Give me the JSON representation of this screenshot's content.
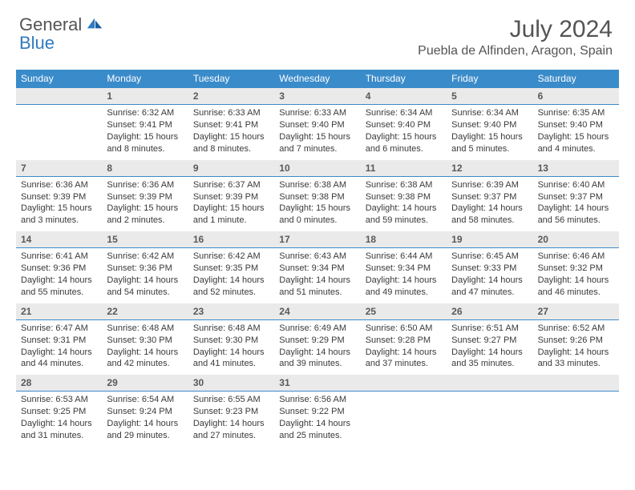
{
  "brand": {
    "part1": "General",
    "part2": "Blue"
  },
  "title": "July 2024",
  "location": "Puebla de Alfinden, Aragon, Spain",
  "colors": {
    "header_bg": "#3a8bca",
    "header_text": "#ffffff",
    "daynum_bg": "#eaeaea",
    "daynum_border": "#3a8bca",
    "body_text": "#3a3a3a",
    "title_text": "#545454"
  },
  "day_headers": [
    "Sunday",
    "Monday",
    "Tuesday",
    "Wednesday",
    "Thursday",
    "Friday",
    "Saturday"
  ],
  "weeks": [
    [
      {
        "n": "",
        "lines": []
      },
      {
        "n": "1",
        "lines": [
          "Sunrise: 6:32 AM",
          "Sunset: 9:41 PM",
          "Daylight: 15 hours",
          "and 8 minutes."
        ]
      },
      {
        "n": "2",
        "lines": [
          "Sunrise: 6:33 AM",
          "Sunset: 9:41 PM",
          "Daylight: 15 hours",
          "and 8 minutes."
        ]
      },
      {
        "n": "3",
        "lines": [
          "Sunrise: 6:33 AM",
          "Sunset: 9:40 PM",
          "Daylight: 15 hours",
          "and 7 minutes."
        ]
      },
      {
        "n": "4",
        "lines": [
          "Sunrise: 6:34 AM",
          "Sunset: 9:40 PM",
          "Daylight: 15 hours",
          "and 6 minutes."
        ]
      },
      {
        "n": "5",
        "lines": [
          "Sunrise: 6:34 AM",
          "Sunset: 9:40 PM",
          "Daylight: 15 hours",
          "and 5 minutes."
        ]
      },
      {
        "n": "6",
        "lines": [
          "Sunrise: 6:35 AM",
          "Sunset: 9:40 PM",
          "Daylight: 15 hours",
          "and 4 minutes."
        ]
      }
    ],
    [
      {
        "n": "7",
        "lines": [
          "Sunrise: 6:36 AM",
          "Sunset: 9:39 PM",
          "Daylight: 15 hours",
          "and 3 minutes."
        ]
      },
      {
        "n": "8",
        "lines": [
          "Sunrise: 6:36 AM",
          "Sunset: 9:39 PM",
          "Daylight: 15 hours",
          "and 2 minutes."
        ]
      },
      {
        "n": "9",
        "lines": [
          "Sunrise: 6:37 AM",
          "Sunset: 9:39 PM",
          "Daylight: 15 hours",
          "and 1 minute."
        ]
      },
      {
        "n": "10",
        "lines": [
          "Sunrise: 6:38 AM",
          "Sunset: 9:38 PM",
          "Daylight: 15 hours",
          "and 0 minutes."
        ]
      },
      {
        "n": "11",
        "lines": [
          "Sunrise: 6:38 AM",
          "Sunset: 9:38 PM",
          "Daylight: 14 hours",
          "and 59 minutes."
        ]
      },
      {
        "n": "12",
        "lines": [
          "Sunrise: 6:39 AM",
          "Sunset: 9:37 PM",
          "Daylight: 14 hours",
          "and 58 minutes."
        ]
      },
      {
        "n": "13",
        "lines": [
          "Sunrise: 6:40 AM",
          "Sunset: 9:37 PM",
          "Daylight: 14 hours",
          "and 56 minutes."
        ]
      }
    ],
    [
      {
        "n": "14",
        "lines": [
          "Sunrise: 6:41 AM",
          "Sunset: 9:36 PM",
          "Daylight: 14 hours",
          "and 55 minutes."
        ]
      },
      {
        "n": "15",
        "lines": [
          "Sunrise: 6:42 AM",
          "Sunset: 9:36 PM",
          "Daylight: 14 hours",
          "and 54 minutes."
        ]
      },
      {
        "n": "16",
        "lines": [
          "Sunrise: 6:42 AM",
          "Sunset: 9:35 PM",
          "Daylight: 14 hours",
          "and 52 minutes."
        ]
      },
      {
        "n": "17",
        "lines": [
          "Sunrise: 6:43 AM",
          "Sunset: 9:34 PM",
          "Daylight: 14 hours",
          "and 51 minutes."
        ]
      },
      {
        "n": "18",
        "lines": [
          "Sunrise: 6:44 AM",
          "Sunset: 9:34 PM",
          "Daylight: 14 hours",
          "and 49 minutes."
        ]
      },
      {
        "n": "19",
        "lines": [
          "Sunrise: 6:45 AM",
          "Sunset: 9:33 PM",
          "Daylight: 14 hours",
          "and 47 minutes."
        ]
      },
      {
        "n": "20",
        "lines": [
          "Sunrise: 6:46 AM",
          "Sunset: 9:32 PM",
          "Daylight: 14 hours",
          "and 46 minutes."
        ]
      }
    ],
    [
      {
        "n": "21",
        "lines": [
          "Sunrise: 6:47 AM",
          "Sunset: 9:31 PM",
          "Daylight: 14 hours",
          "and 44 minutes."
        ]
      },
      {
        "n": "22",
        "lines": [
          "Sunrise: 6:48 AM",
          "Sunset: 9:30 PM",
          "Daylight: 14 hours",
          "and 42 minutes."
        ]
      },
      {
        "n": "23",
        "lines": [
          "Sunrise: 6:48 AM",
          "Sunset: 9:30 PM",
          "Daylight: 14 hours",
          "and 41 minutes."
        ]
      },
      {
        "n": "24",
        "lines": [
          "Sunrise: 6:49 AM",
          "Sunset: 9:29 PM",
          "Daylight: 14 hours",
          "and 39 minutes."
        ]
      },
      {
        "n": "25",
        "lines": [
          "Sunrise: 6:50 AM",
          "Sunset: 9:28 PM",
          "Daylight: 14 hours",
          "and 37 minutes."
        ]
      },
      {
        "n": "26",
        "lines": [
          "Sunrise: 6:51 AM",
          "Sunset: 9:27 PM",
          "Daylight: 14 hours",
          "and 35 minutes."
        ]
      },
      {
        "n": "27",
        "lines": [
          "Sunrise: 6:52 AM",
          "Sunset: 9:26 PM",
          "Daylight: 14 hours",
          "and 33 minutes."
        ]
      }
    ],
    [
      {
        "n": "28",
        "lines": [
          "Sunrise: 6:53 AM",
          "Sunset: 9:25 PM",
          "Daylight: 14 hours",
          "and 31 minutes."
        ]
      },
      {
        "n": "29",
        "lines": [
          "Sunrise: 6:54 AM",
          "Sunset: 9:24 PM",
          "Daylight: 14 hours",
          "and 29 minutes."
        ]
      },
      {
        "n": "30",
        "lines": [
          "Sunrise: 6:55 AM",
          "Sunset: 9:23 PM",
          "Daylight: 14 hours",
          "and 27 minutes."
        ]
      },
      {
        "n": "31",
        "lines": [
          "Sunrise: 6:56 AM",
          "Sunset: 9:22 PM",
          "Daylight: 14 hours",
          "and 25 minutes."
        ]
      },
      {
        "n": "",
        "lines": []
      },
      {
        "n": "",
        "lines": []
      },
      {
        "n": "",
        "lines": []
      }
    ]
  ]
}
